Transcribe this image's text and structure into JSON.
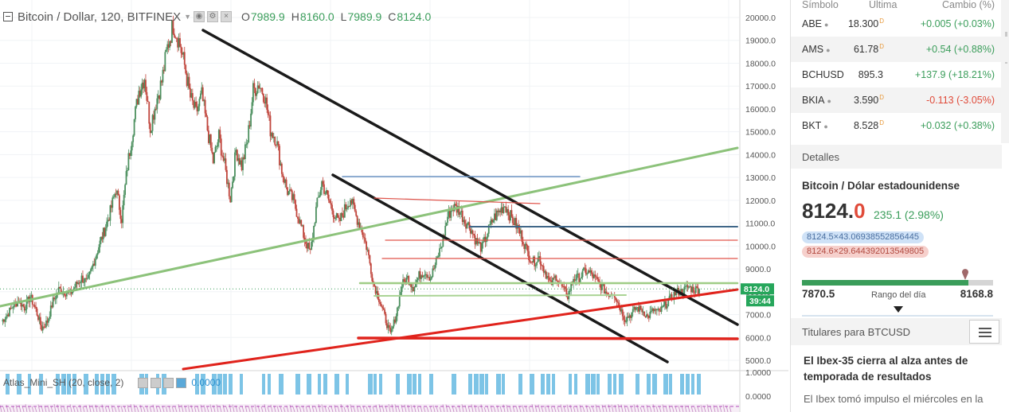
{
  "chart": {
    "symbol_line": "Bitcoin / Dollar, 120, BITFINEX",
    "ohlc": [
      {
        "label": "O",
        "value": "7989.9"
      },
      {
        "label": "H",
        "value": "8160.0"
      },
      {
        "label": "L",
        "value": "7989.9"
      },
      {
        "label": "C",
        "value": "8124.0"
      }
    ],
    "last_price_label": "8124.0",
    "countdown_label": "39:44",
    "indicator": {
      "name": "Atlas_Mini_SH (20, close, 2)",
      "value": "0.0000"
    },
    "colors": {
      "up": "#3a9d5a",
      "down": "#e04b3a",
      "axis_price": "#26a65b"
    }
  },
  "chart_data": {
    "type": "line",
    "title": "Bitcoin / Dollar, 120, BITFINEX",
    "y_ticks": [
      "20000.0",
      "19000.0",
      "18000.0",
      "17000.0",
      "16000.0",
      "15000.0",
      "14000.0",
      "13000.0",
      "12000.0",
      "11000.0",
      "10000.0",
      "9000.0",
      "8000.0",
      "7000.0",
      "6000.0",
      "5000.0"
    ],
    "ylim": [
      4600,
      20600
    ],
    "indicator_ticks": [
      "1.0000",
      "0.0000"
    ],
    "series": [
      {
        "values": [
          6700,
          7000,
          7400,
          7600,
          7300,
          7800,
          7200,
          6400,
          6700,
          7600,
          8100,
          8000,
          7900,
          8300,
          8600,
          8400,
          9200,
          10000,
          10700,
          11500,
          12500,
          11200,
          13500,
          15200,
          16800,
          17400,
          15200,
          16300,
          17200,
          18700,
          19700,
          19000,
          17900,
          16500,
          15800,
          16600,
          15100,
          13700,
          14800,
          13500,
          12100,
          14200,
          13500,
          14600,
          16800,
          17100,
          16600,
          15100,
          14700,
          13300,
          12400,
          12000,
          11200,
          10300,
          9700,
          11600,
          12800,
          12100,
          11500,
          11000,
          11600,
          12100,
          11300,
          10700,
          9800,
          8400,
          7700,
          6900,
          6100,
          7000,
          8300,
          8600,
          8200,
          8700,
          8900,
          8600,
          9300,
          10100,
          11300,
          11700,
          11600,
          11100,
          10800,
          10200,
          9900,
          10600,
          11200,
          11500,
          11800,
          11300,
          10900,
          10400,
          9700,
          9300,
          9500,
          8900,
          8300,
          8700,
          8200,
          7800,
          8600,
          8600,
          8900,
          8800,
          8500,
          8200,
          7900,
          8000,
          7400,
          6800,
          7000,
          7300,
          7200,
          6900,
          7200,
          7100,
          7400,
          7700,
          8000,
          8000,
          8200,
          8100,
          8124
        ]
      }
    ]
  },
  "watchlist": {
    "headers": {
      "symbol": "Símbolo",
      "last": "Última",
      "change": "Cambio (%)"
    },
    "rows": [
      {
        "symbol": "ABE",
        "last": "18.300",
        "flag": "D",
        "change": "+0.005 (+0.03%)",
        "dir": "up"
      },
      {
        "symbol": "AMS",
        "last": "61.78",
        "flag": "D",
        "change": "+0.54 (+0.88%)",
        "dir": "up"
      },
      {
        "symbol": "BCHUSD",
        "last": "895.3",
        "flag": "",
        "change": "+137.9 (+18.21%)",
        "dir": "up"
      },
      {
        "symbol": "BKIA",
        "last": "3.590",
        "flag": "D",
        "change": "-0.113 (-3.05%)",
        "dir": "down"
      },
      {
        "symbol": "BKT",
        "last": "8.528",
        "flag": "D",
        "change": "+0.032 (+0.38%)",
        "dir": "up"
      }
    ]
  },
  "details": {
    "header": "Detalles",
    "name": "Bitcoin / Dólar estadounidense",
    "price_main": "8124.",
    "price_tail": "0",
    "change": "235.1 (2.98%)",
    "bid": "8124.5×43.06938552856445",
    "ask": "8124.6×29.644392013549805",
    "range_low": "7870.5",
    "range_high": "8168.8",
    "range_label": "Rango del día",
    "range_fill": 0.87
  },
  "news": {
    "header": "Titulares para BTCUSD",
    "title": "El Ibex-35 cierra al alza antes de temporada de resultados",
    "body": "El Ibex tomó impulso el miércoles en la"
  }
}
